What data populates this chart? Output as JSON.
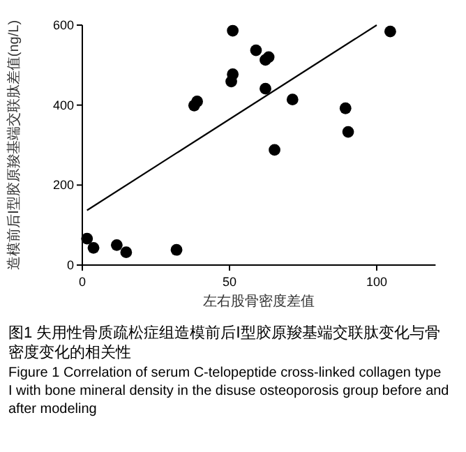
{
  "chart_data": {
    "type": "scatter",
    "xlabel": "左右股骨密度差值",
    "ylabel": "造模前后Ⅰ型胶原羧基端交联肽差值(ng/L)",
    "xlim": [
      0,
      120
    ],
    "xticks": [
      0,
      50,
      100
    ],
    "ylim": [
      0,
      600
    ],
    "yticks": [
      0,
      200,
      400,
      600
    ],
    "grid": false,
    "marker": "circle",
    "series": [
      {
        "color": "#000000",
        "x": [
          1.6,
          3.8,
          11.7,
          14.9,
          32,
          38,
          39,
          50.6,
          51.1,
          51.1,
          59,
          62.2,
          63.3,
          62.2,
          65.3,
          71.4,
          89.4,
          90.3,
          104.6
        ],
        "values": [
          66,
          43,
          50,
          32,
          38,
          399,
          409,
          459,
          477,
          586,
          537,
          513,
          520,
          441,
          288,
          414,
          392,
          333,
          584
        ]
      },
      {
        "type": "line",
        "color": "#000000",
        "marker": "none",
        "x": [
          1.6,
          100
        ],
        "values": [
          137,
          600
        ]
      }
    ],
    "annotations": [
      "图1  失用性骨质疏松症组造模前后Ⅰ型胶原羧基端交联肽变化与骨密度变化的相关性",
      "Figure 1  Correlation of serum C-telopeptide cross-linked collagen type I with bone mineral density in the disuse osteoporosis group before and after modeling"
    ]
  }
}
